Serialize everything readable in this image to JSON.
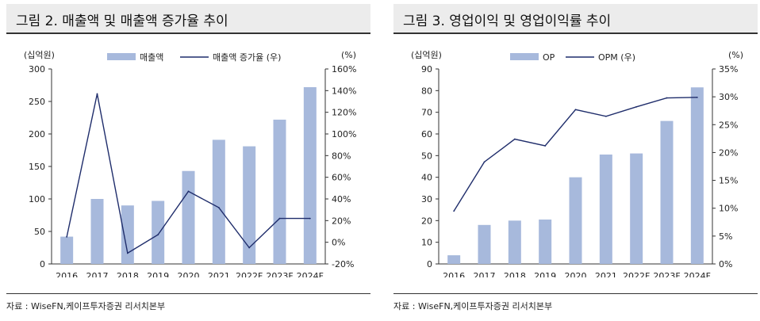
{
  "colors": {
    "bar": "#a7b9dc",
    "line": "#1f2d6b",
    "axis": "#333333"
  },
  "chart_data": [
    {
      "type": "bar+line",
      "title": "그림 2. 매출액 및 매출액 증가율 추이",
      "categories": [
        "2016",
        "2017",
        "2018",
        "2019",
        "2020",
        "2021",
        "2022F",
        "2023F",
        "2024F"
      ],
      "series": [
        {
          "name": "매출액",
          "type": "bar",
          "axis": "left",
          "values": [
            42,
            100,
            90,
            97,
            143,
            191,
            181,
            222,
            272
          ]
        },
        {
          "name": "매출액 증가율 (우)",
          "type": "line",
          "axis": "right",
          "values": [
            5,
            137,
            -10,
            7,
            47,
            32,
            -5,
            22,
            22
          ]
        }
      ],
      "ylabel_left": "(십억원)",
      "ylabel_right": "(%)",
      "ylim_left": [
        0,
        300
      ],
      "ystep_left": 50,
      "ylim_right": [
        -20,
        160
      ],
      "ystep_right": 20,
      "ytick_labels_left": [
        "0",
        "50",
        "100",
        "150",
        "200",
        "250",
        "300"
      ],
      "ytick_labels_right": [
        "-20%",
        "0%",
        "20%",
        "40%",
        "60%",
        "80%",
        "100%",
        "120%",
        "140%",
        "160%"
      ],
      "source": "자료 : WiseFN,케이프투자증권 리서치본부"
    },
    {
      "type": "bar+line",
      "title": "그림 3. 영업이익 및 영업이익률 추이",
      "categories": [
        "2016",
        "2017",
        "2018",
        "2019",
        "2020",
        "2021",
        "2022F",
        "2023F",
        "2024F"
      ],
      "series": [
        {
          "name": "OP",
          "type": "bar",
          "axis": "left",
          "values": [
            4,
            18,
            20,
            20.5,
            40,
            50.5,
            51,
            66,
            81.5
          ]
        },
        {
          "name": "OPM (우)",
          "type": "line",
          "axis": "right",
          "values": [
            9.5,
            18.3,
            22.4,
            21.2,
            27.7,
            26.5,
            28.2,
            29.8,
            29.9
          ]
        }
      ],
      "ylabel_left": "(십억원)",
      "ylabel_right": "(%)",
      "ylim_left": [
        0,
        90
      ],
      "ystep_left": 10,
      "ylim_right": [
        0,
        35
      ],
      "ystep_right": 5,
      "ytick_labels_left": [
        "0",
        "10",
        "20",
        "30",
        "40",
        "50",
        "60",
        "70",
        "80",
        "90"
      ],
      "ytick_labels_right": [
        "0%",
        "5%",
        "10%",
        "15%",
        "20%",
        "25%",
        "30%",
        "35%"
      ],
      "source": "자료 : WiseFN,케이프투자증권 리서치본부"
    }
  ]
}
